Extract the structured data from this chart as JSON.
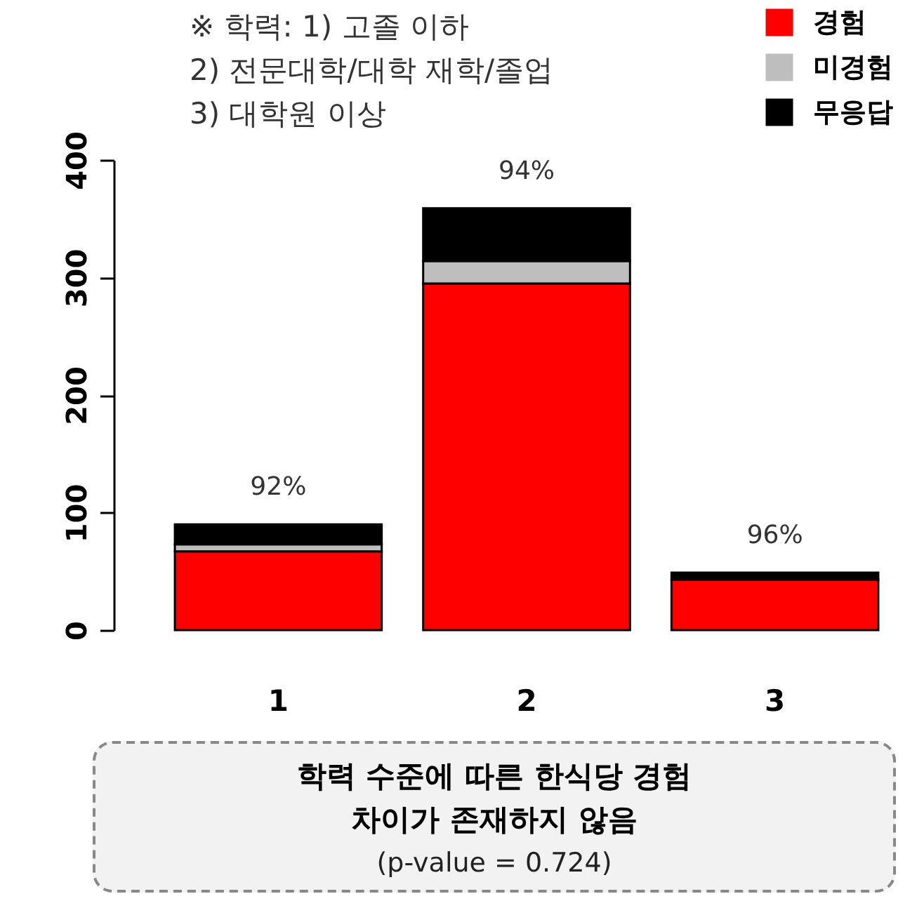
{
  "chart_data": {
    "type": "bar",
    "categories": [
      "1",
      "2",
      "3"
    ],
    "stacked": true,
    "ylim": [
      0,
      400
    ],
    "yticks": [
      0,
      100,
      200,
      300,
      400
    ],
    "grid": false,
    "legend": "top right",
    "series": [
      {
        "name": "경험",
        "color": "#ff0000",
        "values": [
          67,
          295,
          43
        ]
      },
      {
        "name": "미경험",
        "color": "#bebebe",
        "values": [
          6,
          19,
          null
        ]
      },
      {
        "name": "무응답",
        "color": "#000000",
        "values": [
          17,
          45,
          6
        ]
      }
    ],
    "annotations": [
      {
        "text": "92%",
        "x": "1",
        "y": 90
      },
      {
        "text": "94%",
        "x": "2",
        "y": 359
      },
      {
        "text": "96%",
        "x": "3",
        "y": 49
      },
      "※ 학력: 1) 고졸 이하\n2) 전문대학/대학 재학/졸업\n3) 대학원 이상",
      "학력 수준에 따른 한식당 경험\n차이가 존재하지 않음\n(p-value = 0.724)"
    ]
  }
}
